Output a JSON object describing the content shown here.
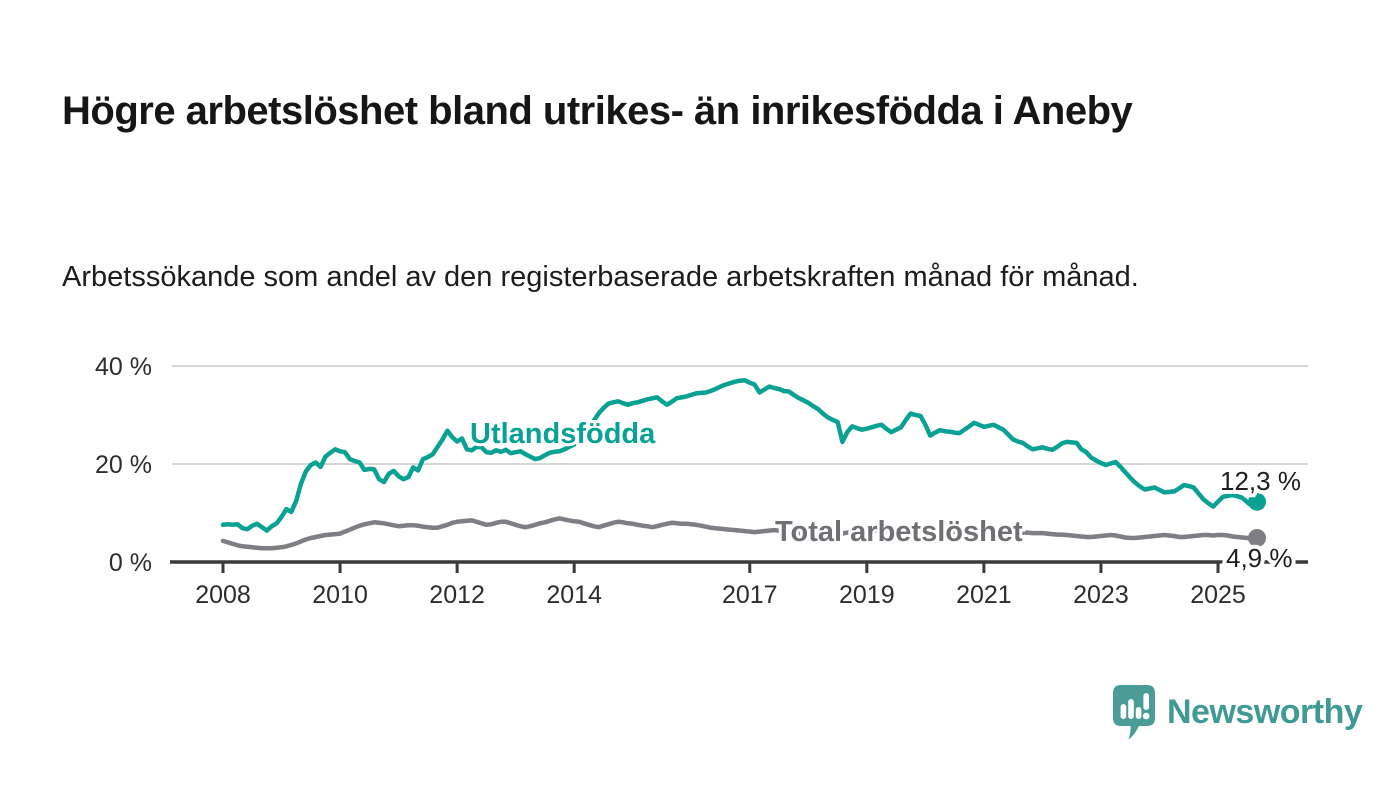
{
  "chart_data": {
    "type": "line",
    "title": "Högre arbetslöshet bland utrikes- än inrikesfödda i Aneby",
    "subtitle": "Arbetssökande som andel av den registerbaserade arbetskraften månad för månad.",
    "unit": "%",
    "grid": "horizontal",
    "legend_position": "inline-labels",
    "x_axis": {
      "ticks": [
        {
          "value": 2008,
          "label": "2008"
        },
        {
          "value": 2010,
          "label": "2010"
        },
        {
          "value": 2012,
          "label": "2012"
        },
        {
          "value": 2014,
          "label": "2014"
        },
        {
          "value": 2017,
          "label": "2017"
        },
        {
          "value": 2019,
          "label": "2019"
        },
        {
          "value": 2021,
          "label": "2021"
        },
        {
          "value": 2023,
          "label": "2023"
        },
        {
          "value": 2025,
          "label": "2025"
        }
      ]
    },
    "y_axis": {
      "range": [
        0,
        40
      ],
      "ticks": [
        {
          "value": 0,
          "label": "0 %"
        },
        {
          "value": 20,
          "label": "20 %"
        },
        {
          "value": 40,
          "label": "40 %"
        }
      ]
    },
    "series": [
      {
        "name": "Utlandsfödda",
        "color": "#0aa195",
        "label_color": "#0aa195",
        "end_label": "12,3 %",
        "end_value": 12.3,
        "x_start": 2008,
        "cadence": "monthly",
        "values": [
          7.6,
          7.7,
          7.6,
          7.7,
          6.9,
          6.7,
          7.4,
          7.8,
          7.1,
          6.4,
          7.3,
          7.9,
          9.2,
          10.8,
          10.2,
          12.5,
          16.0,
          18.5,
          19.8,
          20.3,
          19.4,
          21.5,
          22.3,
          23.0,
          22.6,
          22.4,
          21.0,
          20.6,
          20.3,
          18.8,
          19.0,
          18.9,
          16.9,
          16.3,
          18.0,
          18.6,
          17.5,
          16.9,
          17.3,
          19.3,
          18.7,
          21.0,
          21.4,
          22.0,
          23.5,
          25.0,
          26.8,
          25.5,
          24.6,
          25.2,
          23.0,
          22.8,
          23.5,
          23.4,
          22.4,
          22.3,
          22.8,
          22.5,
          22.9,
          22.2,
          22.4,
          22.6,
          22.0,
          21.5,
          21.0,
          21.2,
          21.8,
          22.3,
          22.5,
          22.6,
          23.0,
          23.5,
          24.0,
          24.5,
          25.5,
          27.0,
          28.8,
          30.3,
          31.4,
          32.3,
          32.6,
          32.8,
          32.4,
          32.1,
          32.4,
          32.6,
          32.9,
          33.2,
          33.4,
          33.6,
          32.8,
          32.1,
          32.7,
          33.4,
          33.6,
          33.8,
          34.1,
          34.4,
          34.5,
          34.6,
          34.9,
          35.3,
          35.8,
          36.2,
          36.5,
          36.8,
          37.0,
          37.1,
          36.6,
          36.2,
          34.6,
          35.2,
          35.8,
          35.5,
          35.3,
          34.9,
          34.8,
          34.1,
          33.5,
          33.0,
          32.5,
          31.8,
          31.2,
          30.3,
          29.5,
          29.0,
          28.6,
          24.5,
          26.5,
          27.7,
          27.3,
          27.0,
          27.2,
          27.5,
          27.8,
          28.0,
          27.2,
          26.5,
          27.0,
          27.5,
          29.0,
          30.3,
          30.0,
          29.8,
          28.0,
          25.8,
          26.4,
          26.9,
          26.7,
          26.6,
          26.4,
          26.3,
          27.0,
          27.7,
          28.4,
          28.0,
          27.6,
          27.8,
          28.0,
          27.5,
          27.0,
          26.0,
          25.0,
          24.6,
          24.3,
          23.6,
          23.0,
          23.2,
          23.4,
          23.1,
          22.9,
          23.5,
          24.2,
          24.5,
          24.4,
          24.3,
          23.0,
          22.4,
          21.3,
          20.7,
          20.2,
          19.8,
          20.1,
          20.4,
          19.4,
          18.3,
          17.2,
          16.2,
          15.4,
          14.8,
          15.0,
          15.2,
          14.7,
          14.2,
          14.3,
          14.4,
          15.0,
          15.7,
          15.5,
          15.2,
          14.0,
          12.8,
          12.0,
          11.3,
          12.3,
          13.3,
          13.5,
          13.7,
          13.4,
          13.1,
          12.2,
          11.4,
          12.3
        ]
      },
      {
        "name": "Total arbetslöshet",
        "color": "#7e7e84",
        "label_color": "#6f6f75",
        "end_label": "4,9 %",
        "end_value": 4.9,
        "x_start": 2008,
        "cadence": "monthly",
        "values": [
          4.3,
          4.0,
          3.7,
          3.4,
          3.2,
          3.1,
          3.0,
          2.9,
          2.8,
          2.8,
          2.8,
          2.9,
          3.0,
          3.2,
          3.5,
          3.8,
          4.2,
          4.6,
          4.9,
          5.1,
          5.3,
          5.5,
          5.6,
          5.7,
          5.8,
          6.2,
          6.6,
          7.0,
          7.4,
          7.7,
          7.9,
          8.1,
          8.0,
          7.9,
          7.7,
          7.5,
          7.3,
          7.4,
          7.5,
          7.5,
          7.4,
          7.2,
          7.1,
          7.0,
          7.0,
          7.3,
          7.6,
          8.0,
          8.2,
          8.3,
          8.4,
          8.5,
          8.2,
          7.9,
          7.6,
          7.7,
          8.0,
          8.2,
          8.2,
          7.9,
          7.6,
          7.3,
          7.1,
          7.3,
          7.6,
          7.9,
          8.1,
          8.4,
          8.7,
          8.9,
          8.7,
          8.5,
          8.3,
          8.2,
          7.9,
          7.6,
          7.3,
          7.1,
          7.4,
          7.7,
          8.0,
          8.2,
          8.1,
          7.9,
          7.8,
          7.6,
          7.4,
          7.3,
          7.1,
          7.3,
          7.6,
          7.8,
          8.0,
          7.9,
          7.8,
          7.8,
          7.7,
          7.6,
          7.4,
          7.2,
          7.0,
          6.9,
          6.8,
          6.7,
          6.6,
          6.5,
          6.4,
          6.3,
          6.2,
          6.1,
          6.2,
          6.3,
          6.4,
          6.5,
          6.4,
          6.2,
          6.0,
          5.9,
          5.9,
          6.0,
          6.0,
          6.1,
          6.0,
          5.8,
          5.6,
          5.5,
          5.6,
          5.8,
          6.0,
          6.1,
          6.0,
          6.0,
          6.1,
          6.2,
          6.4,
          6.5,
          6.4,
          6.3,
          6.2,
          6.1,
          6.2,
          6.3,
          6.4,
          6.5,
          6.5,
          6.4,
          6.3,
          6.2,
          6.1,
          6.1,
          6.2,
          6.3,
          6.3,
          6.4,
          6.4,
          6.5,
          6.5,
          6.4,
          6.3,
          6.2,
          6.1,
          6.1,
          6.1,
          6.1,
          6.0,
          6.0,
          5.9,
          5.9,
          5.9,
          5.8,
          5.7,
          5.6,
          5.6,
          5.5,
          5.4,
          5.3,
          5.2,
          5.1,
          5.1,
          5.2,
          5.3,
          5.4,
          5.5,
          5.4,
          5.2,
          5.0,
          4.9,
          4.9,
          5.0,
          5.1,
          5.2,
          5.3,
          5.4,
          5.5,
          5.4,
          5.3,
          5.1,
          5.1,
          5.2,
          5.3,
          5.4,
          5.5,
          5.5,
          5.4,
          5.5,
          5.5,
          5.4,
          5.2,
          5.1,
          5.0,
          4.9,
          4.8,
          4.9
        ]
      }
    ]
  },
  "branding": {
    "logo_text": "Newsworthy",
    "logo_icon": "newsworthy-speech-bubble-chart-icon",
    "logo_color": "#4a9d97"
  }
}
